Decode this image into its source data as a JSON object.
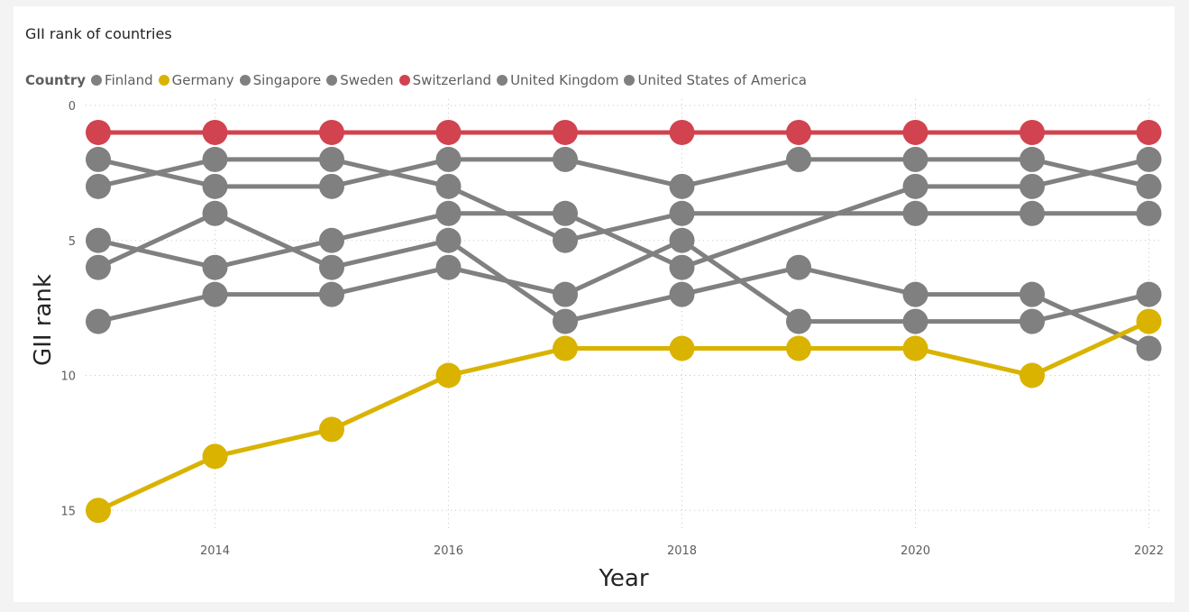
{
  "chart_data": {
    "type": "line",
    "title": "GII rank of countries",
    "legend_title": "Country",
    "legend_position": "top-left",
    "xlabel": "Year",
    "ylabel": "GII rank",
    "x": [
      2013,
      2014,
      2015,
      2016,
      2017,
      2018,
      2019,
      2020,
      2021,
      2022
    ],
    "xticks": [
      "2014",
      "2016",
      "2018",
      "2020",
      "2022"
    ],
    "yticks": [
      "0",
      "5",
      "10",
      "15"
    ],
    "ylim": [
      0,
      15.8
    ],
    "y_reversed": true,
    "grid": true,
    "series": [
      {
        "name": "Finland",
        "color": "#808080",
        "values": [
          6,
          4,
          6,
          5,
          8,
          7,
          6,
          7,
          7,
          9
        ]
      },
      {
        "name": "Germany",
        "color": "#D9B300",
        "values": [
          15,
          13,
          12,
          10,
          9,
          9,
          9,
          9,
          10,
          8
        ]
      },
      {
        "name": "Singapore",
        "color": "#808080",
        "values": [
          8,
          7,
          7,
          6,
          7,
          5,
          8,
          8,
          8,
          7
        ]
      },
      {
        "name": "Sweden",
        "color": "#808080",
        "values": [
          2,
          3,
          3,
          2,
          2,
          3,
          2,
          2,
          2,
          3
        ]
      },
      {
        "name": "Switzerland",
        "color": "#D1434F",
        "values": [
          1,
          1,
          1,
          1,
          1,
          1,
          1,
          1,
          1,
          1
        ]
      },
      {
        "name": "United Kingdom",
        "color": "#808080",
        "values": [
          3,
          2,
          2,
          3,
          5,
          4,
          null,
          4,
          4,
          4
        ]
      },
      {
        "name": "United States of America",
        "color": "#808080",
        "values": [
          5,
          6,
          5,
          4,
          4,
          6,
          null,
          3,
          3,
          2
        ]
      }
    ]
  }
}
